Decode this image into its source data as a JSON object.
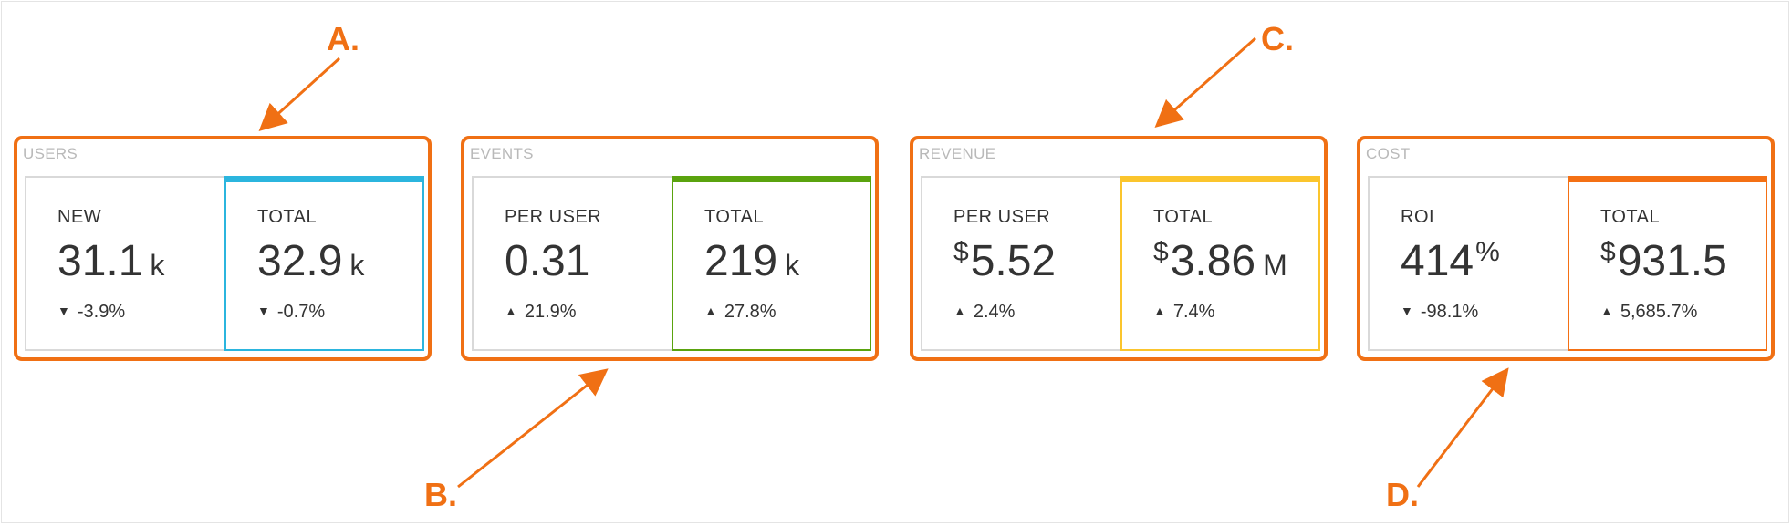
{
  "colors": {
    "accent": "#f07014",
    "users": "#2bb5de",
    "events": "#5aa30e",
    "revenue": "#fbc52d",
    "cost": "#f47014"
  },
  "callouts": [
    "A.",
    "B.",
    "C.",
    "D."
  ],
  "groups": [
    {
      "title": "USERS",
      "left": {
        "label": "NEW",
        "value": "31.1",
        "unit": "k",
        "change": "-3.9%",
        "direction": "down"
      },
      "right": {
        "label": "TOTAL",
        "value": "32.9",
        "unit": "k",
        "change": "-0.7%",
        "direction": "down"
      }
    },
    {
      "title": "EVENTS",
      "left": {
        "label": "PER USER",
        "value": "0.31",
        "unit": "",
        "change": "21.9%",
        "direction": "up"
      },
      "right": {
        "label": "TOTAL",
        "value": "219",
        "unit": "k",
        "change": "27.8%",
        "direction": "up"
      }
    },
    {
      "title": "REVENUE",
      "left": {
        "label": "PER USER",
        "currency": "$",
        "value": "5.52",
        "unit": "",
        "change": "2.4%",
        "direction": "up"
      },
      "right": {
        "label": "TOTAL",
        "currency": "$",
        "value": "3.86",
        "unit": "M",
        "change": "7.4%",
        "direction": "up"
      }
    },
    {
      "title": "COST",
      "left": {
        "label": "ROI",
        "value": "414",
        "percent": "%",
        "change": "-98.1%",
        "direction": "down"
      },
      "right": {
        "label": "TOTAL",
        "currency": "$",
        "value": "931.5",
        "unit": "",
        "change": "5,685.7%",
        "direction": "up"
      }
    }
  ],
  "glyphs": {
    "up": "▲",
    "down": "▼"
  }
}
